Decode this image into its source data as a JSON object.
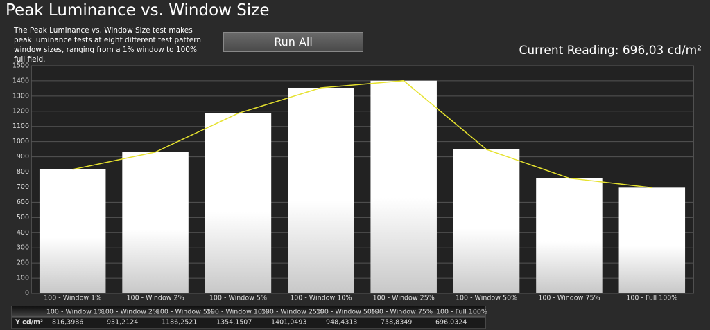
{
  "header": {
    "title": "Peak Luminance vs. Window Size",
    "description": "The Peak Luminance vs. Window Size test makes peak luminance tests at eight different test pattern window sizes, ranging from a 1% window to 100% full field.",
    "button": "Run All",
    "reading": "Current Reading: 696,03 cd/m²"
  },
  "chart_data": {
    "type": "bar",
    "categories": [
      "100 - Window 1%",
      "100 - Window 2%",
      "100 - Window 5%",
      "100 - Window 10%",
      "100 - Window 25%",
      "100 - Window 50%",
      "100 - Window 75%",
      "100 - Full 100%"
    ],
    "values": [
      816.3986,
      931.2124,
      1186.2521,
      1354.1507,
      1401.0493,
      948.4313,
      758.8349,
      696.0324
    ],
    "value_labels": [
      "816,3986",
      "931,2124",
      "1186,2521",
      "1354,1507",
      "1401,0493",
      "948,4313",
      "758,8349",
      "696,0324"
    ],
    "line_color": "#e6e22e",
    "ylim": [
      0,
      1500
    ],
    "yticks": [
      0,
      100,
      200,
      300,
      400,
      500,
      600,
      700,
      800,
      900,
      1000,
      1100,
      1200,
      1300,
      1400,
      1500
    ],
    "grid": true
  },
  "table": {
    "row_label": "Y cd/m²"
  }
}
